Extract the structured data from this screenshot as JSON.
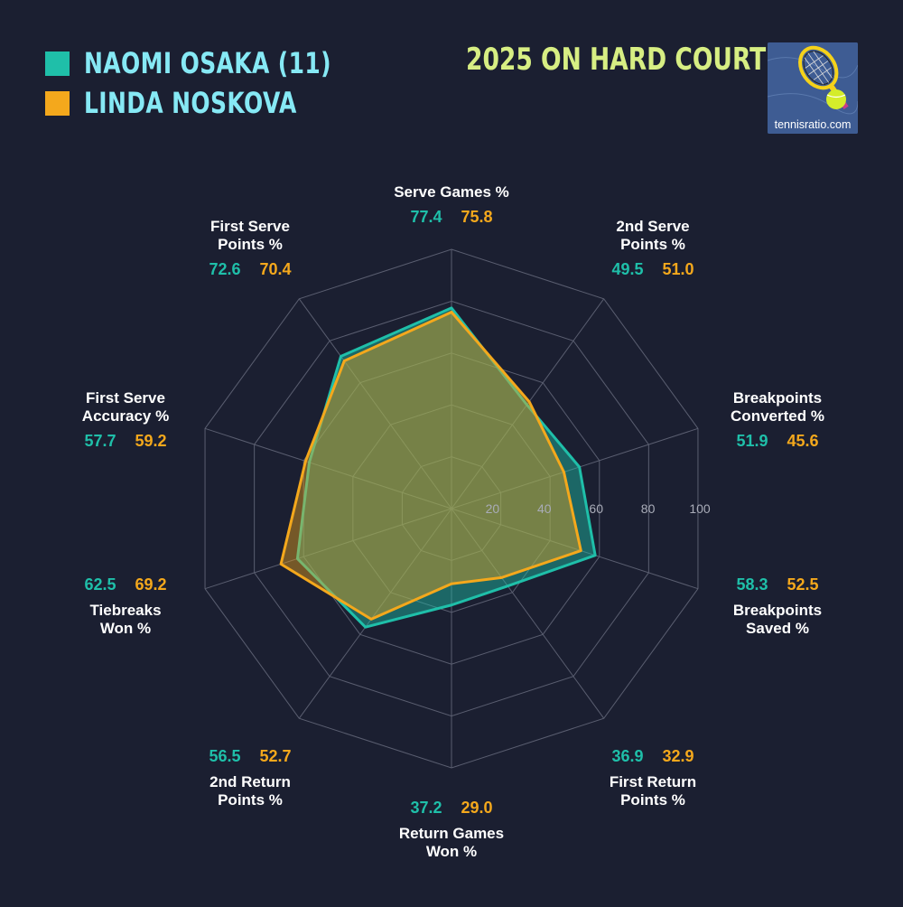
{
  "legend": [
    {
      "label": "NAOMI OSAKA (11)",
      "color": "#1fbfa9"
    },
    {
      "label": "LINDA NOSKOVA",
      "color": "#f4a81c"
    }
  ],
  "title": "2025 ON HARD COURTS",
  "logo": {
    "text": "tennisratio.com",
    "icon": "tennis-racket-and-ball-icon"
  },
  "colors": {
    "background": "#1b1f31",
    "grid": "#5a5e70",
    "osaka": "#1fbfa9",
    "noskova": "#f4a81c",
    "label": "#ffffff"
  },
  "chart_data": {
    "type": "radar",
    "rlim": [
      0,
      100
    ],
    "r_ticks": [
      20,
      40,
      60,
      80,
      100
    ],
    "axes": [
      {
        "label": "Serve Games %",
        "lines": [
          "Serve Games %"
        ]
      },
      {
        "label": "2nd Serve Points %",
        "lines": [
          "2nd Serve",
          "Points %"
        ]
      },
      {
        "label": "Breakpoints Converted %",
        "lines": [
          "Breakpoints",
          "Converted %"
        ]
      },
      {
        "label": "Breakpoints Saved %",
        "lines": [
          "Breakpoints",
          "Saved %"
        ]
      },
      {
        "label": "First Return Points %",
        "lines": [
          "First Return",
          "Points %"
        ]
      },
      {
        "label": "Return Games Won %",
        "lines": [
          "Return Games",
          "Won %"
        ]
      },
      {
        "label": "2nd Return Points %",
        "lines": [
          "2nd Return",
          "Points %"
        ]
      },
      {
        "label": "Tiebreaks Won %",
        "lines": [
          "Tiebreaks",
          "Won %"
        ]
      },
      {
        "label": "First Serve Accuracy %",
        "lines": [
          "First Serve",
          "Accuracy %"
        ]
      },
      {
        "label": "First Serve Points %",
        "lines": [
          "First Serve",
          "Points %"
        ]
      }
    ],
    "series": [
      {
        "name": "NAOMI OSAKA (11)",
        "values": [
          77.4,
          49.5,
          51.9,
          58.3,
          36.9,
          37.2,
          56.5,
          62.5,
          57.7,
          72.6
        ]
      },
      {
        "name": "LINDA NOSKOVA",
        "values": [
          75.8,
          51.0,
          45.6,
          52.5,
          32.9,
          29.0,
          52.7,
          69.2,
          59.2,
          70.4
        ]
      }
    ]
  }
}
